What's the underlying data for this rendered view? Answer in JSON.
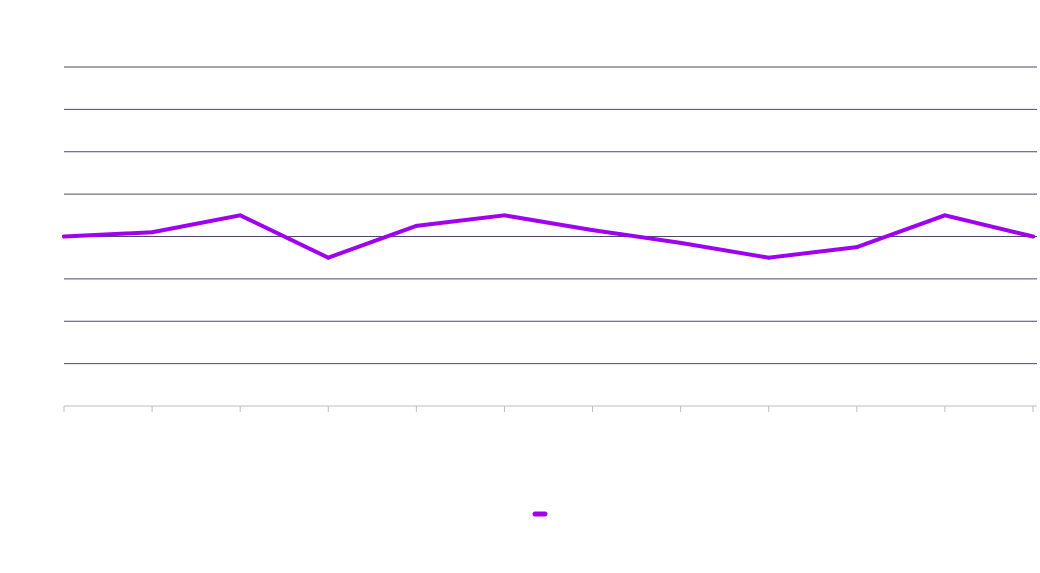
{
  "chart_data": {
    "type": "line",
    "title": "",
    "xlabel": "",
    "ylabel": "",
    "categories": [
      "",
      "",
      "",
      "",
      "",
      "",
      "",
      "",
      "",
      "",
      "",
      ""
    ],
    "ylim": [
      -4,
      4
    ],
    "y_gridlines": [
      -4,
      -3,
      -2,
      -1,
      0,
      1,
      2,
      3,
      4
    ],
    "grid": true,
    "legend_position": "bottom",
    "series": [
      {
        "values": [
          0,
          0.1,
          0.5,
          -0.5,
          0.25,
          0.5,
          0.15,
          -0.15,
          -0.5,
          -0.25,
          0.5,
          0
        ],
        "color": "#a000f0"
      }
    ],
    "colors": {
      "grid": "#4a4a66",
      "axis": "#bdbdbd",
      "background": "#ffffff"
    }
  }
}
